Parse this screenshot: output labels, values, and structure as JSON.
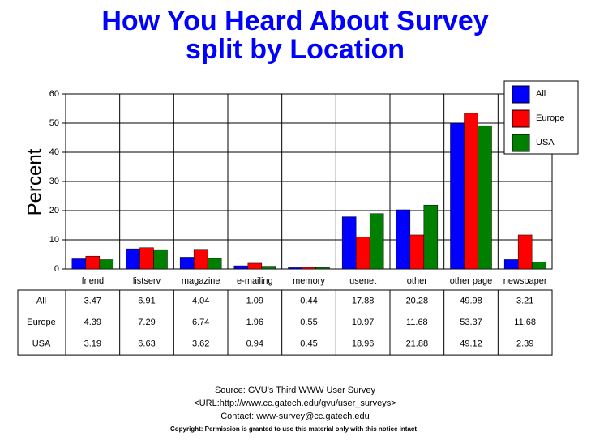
{
  "chart_data": {
    "type": "bar",
    "title": "How You Heard About Survey",
    "subtitle": "split by Location",
    "y_label": "Percent",
    "categories": [
      "friend",
      "listserv",
      "magazine",
      "e-mailing",
      "memory",
      "usenet",
      "other",
      "other page",
      "newspaper"
    ],
    "series": [
      {
        "name": "All",
        "color": "#0000ff",
        "values": [
          3.47,
          6.91,
          4.04,
          1.09,
          0.44,
          17.88,
          20.28,
          49.98,
          3.21
        ]
      },
      {
        "name": "Europe",
        "color": "#ff0000",
        "values": [
          4.39,
          7.29,
          6.74,
          1.96,
          0.55,
          10.97,
          11.68,
          53.37,
          11.68
        ]
      },
      {
        "name": "USA",
        "color": "#008000",
        "values": [
          3.19,
          6.63,
          3.62,
          0.94,
          0.45,
          18.96,
          21.88,
          49.12,
          2.39
        ]
      }
    ],
    "ylim": [
      0,
      60
    ],
    "yticks": [
      0,
      10,
      20,
      30,
      40,
      50,
      60
    ],
    "grid": true,
    "legend": "top-right",
    "notes": [
      "Source: GVU's Third WWW User Survey",
      "<URL:http://www.cc.gatech.edu/gvu/user_surveys>",
      "Contact: www-survey@cc.gatech.edu"
    ],
    "copyright": "Copyright: Permission is granted to use this material only with this notice intact"
  }
}
